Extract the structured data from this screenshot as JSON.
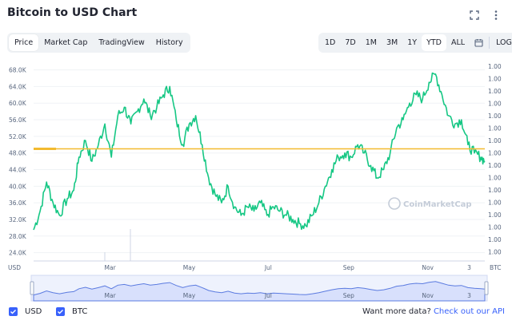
{
  "header": {
    "title": "Bitcoin to USD Chart"
  },
  "icons": {
    "fullscreen": "fullscreen-icon",
    "more": "more-vertical-icon",
    "calendar": "calendar-icon"
  },
  "tabs": [
    {
      "label": "Price",
      "active": true
    },
    {
      "label": "Market Cap",
      "active": false
    },
    {
      "label": "TradingView",
      "active": false
    },
    {
      "label": "History",
      "active": false
    }
  ],
  "ranges": [
    {
      "label": "1D",
      "active": false
    },
    {
      "label": "7D",
      "active": false
    },
    {
      "label": "1M",
      "active": false
    },
    {
      "label": "3M",
      "active": false
    },
    {
      "label": "1Y",
      "active": false
    },
    {
      "label": "YTD",
      "active": true
    },
    {
      "label": "ALL",
      "active": false
    }
  ],
  "log_label": "LOG",
  "watermark": "CoinMarketCap",
  "legend": {
    "usd": "USD",
    "btc": "BTC"
  },
  "footer": {
    "text": "Want more data? ",
    "link": "Check out our API"
  },
  "colors": {
    "line": "#16c784",
    "baseline": "#f3ba2f",
    "accent": "#3861fb",
    "nav_fill": "#d8e0fc",
    "nav_line": "#5b7be0"
  },
  "chart_data": {
    "type": "line",
    "title": "",
    "left_axis_unit": "USD",
    "right_axis_unit": "BTC",
    "yticks": [
      "24.0K",
      "28.0K",
      "32.0K",
      "36.0K",
      "40.0K",
      "44.0K",
      "48.0K",
      "52.0K",
      "56.0K",
      "60.0K",
      "64.0K",
      "68.0K"
    ],
    "ytick_values": [
      24000,
      28000,
      32000,
      36000,
      40000,
      44000,
      48000,
      52000,
      56000,
      60000,
      64000,
      68000
    ],
    "right_ticks": [
      "1.00",
      "1.00",
      "1.00",
      "1.00",
      "1.00",
      "1.00",
      "1.00",
      "1.00",
      "1.00",
      "1.00",
      "1.00",
      "1.00",
      "1.00",
      "1.00",
      "1.00",
      "1.00"
    ],
    "xticks": [
      "Mar",
      "May",
      "Jul",
      "Sep",
      "Nov",
      "3"
    ],
    "xtick_days": [
      59,
      120,
      181,
      243,
      304,
      336
    ],
    "nav_xticks": [
      "Mar",
      "May",
      "Jul",
      "Sep",
      "Nov",
      "3"
    ],
    "ylim": [
      22000,
      71000
    ],
    "xlim_days": [
      0,
      348
    ],
    "baseline_value": 49000,
    "series": [
      {
        "days": [
          0,
          5,
          10,
          15,
          20,
          26,
          31,
          35,
          40,
          45,
          50,
          55,
          60,
          65,
          70,
          75,
          80,
          85,
          90,
          95,
          100,
          105,
          110,
          115,
          120,
          125,
          130,
          135,
          140,
          145,
          150,
          155,
          160,
          165,
          170,
          175,
          180,
          185,
          190,
          195,
          200,
          205,
          210,
          215,
          220,
          225,
          230,
          235,
          240,
          245,
          250,
          255,
          260,
          265,
          270,
          275,
          280,
          285,
          290,
          295,
          300,
          305,
          310,
          315,
          320,
          325,
          330,
          335,
          340,
          345,
          348
        ],
        "values": [
          29500,
          34000,
          41000,
          36000,
          33000,
          37000,
          39000,
          47000,
          51000,
          46000,
          50000,
          55000,
          47000,
          57000,
          59000,
          55000,
          58000,
          61000,
          57000,
          59000,
          62000,
          64000,
          56000,
          50000,
          55000,
          57000,
          50000,
          42000,
          38000,
          36000,
          40000,
          35000,
          33000,
          35000,
          34000,
          36000,
          33000,
          35000,
          34000,
          33000,
          32000,
          31000,
          30500,
          33000,
          36000,
          40000,
          44000,
          47000,
          48000,
          47000,
          50000,
          48000,
          45000,
          42000,
          44000,
          48000,
          54000,
          56000,
          60000,
          62000,
          61000,
          65000,
          67000,
          62000,
          57000,
          55000,
          56000,
          50000,
          48000,
          47000,
          46000
        ]
      }
    ],
    "grid": true,
    "legend": "bottom-left"
  }
}
